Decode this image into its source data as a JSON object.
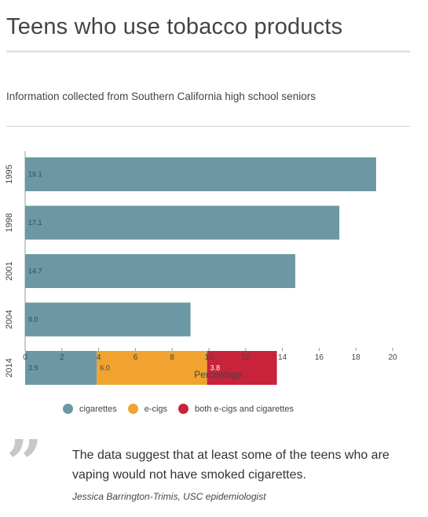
{
  "header": {
    "title": "Teens who use tobacco products",
    "subtitle": "Information collected from Southern California high school seniors"
  },
  "colors": {
    "cigarettes": "#6b98a4",
    "e_cigs": "#f0a32e",
    "both": "#c7233a"
  },
  "legend": {
    "cigarettes": "cigarettes",
    "e_cigs": "e-cigs",
    "both": "both e-cigs and cigarettes"
  },
  "quote": {
    "mark": "”",
    "text": "The data suggest that at least some of the teens who are vaping would not have smoked cigarettes.",
    "attribution": "Jessica Barrington-Trimis, USC epidemiologist"
  },
  "chart_data": {
    "type": "bar",
    "orientation": "horizontal",
    "stacked": true,
    "categories": [
      "1995",
      "1998",
      "2001",
      "2004",
      "2014"
    ],
    "series": [
      {
        "name": "cigarettes",
        "values": [
          19.1,
          17.1,
          14.7,
          9.0,
          3.9
        ],
        "labels": [
          "19.1",
          "17.1",
          "14.7",
          "9.0",
          "3.9"
        ]
      },
      {
        "name": "e-cigs",
        "values": [
          0,
          0,
          0,
          0,
          6.0
        ],
        "labels": [
          "",
          "",
          "",
          "",
          "6.0"
        ]
      },
      {
        "name": "both e-cigs and cigarettes",
        "values": [
          0,
          0,
          0,
          0,
          3.8
        ],
        "labels": [
          "",
          "",
          "",
          "",
          "3.8"
        ]
      }
    ],
    "xlabel": "Percentage",
    "xlim": [
      0,
      20
    ],
    "xticks": [
      "0",
      "2",
      "4",
      "6",
      "8",
      "10",
      "12",
      "14",
      "16",
      "18",
      "20"
    ],
    "legend_position": "bottom"
  }
}
